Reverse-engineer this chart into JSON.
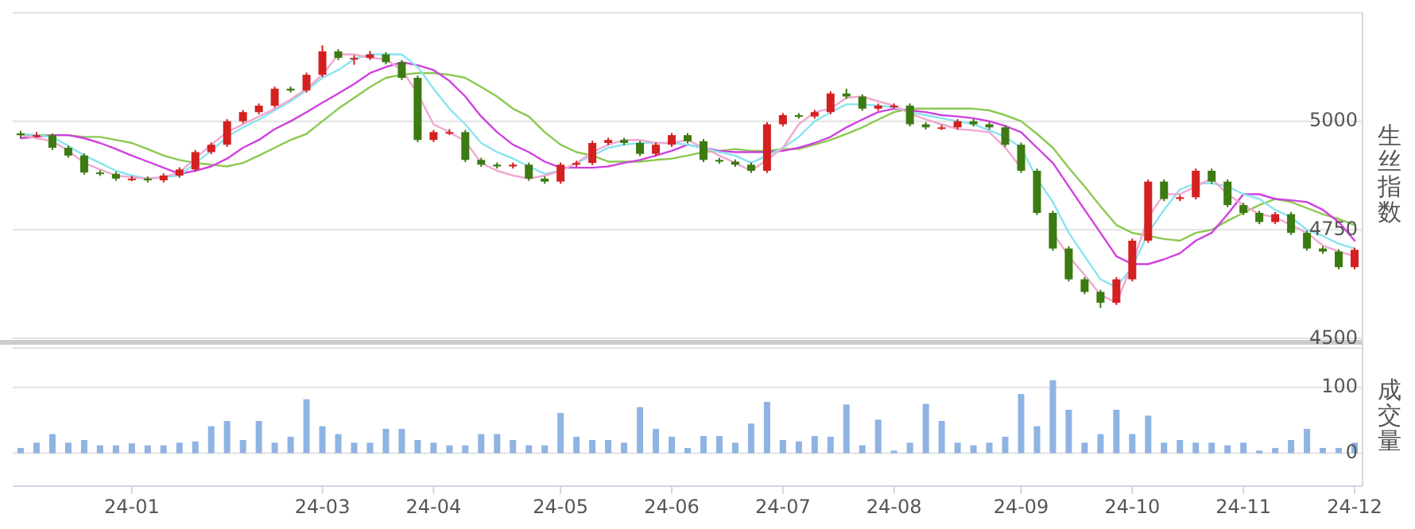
{
  "chart_data": [
    {
      "type": "candlestick",
      "ylabel": "生丝指数",
      "grid": "y",
      "tick_labels": "y",
      "ylim": [
        4500,
        5250
      ],
      "yticks": [
        4500,
        4750,
        5000,
        {
          "value": 5250,
          "label": null
        }
      ],
      "categories": [
        null,
        null,
        null,
        null,
        null,
        null,
        null,
        null,
        null,
        null,
        null,
        null,
        null,
        null,
        null,
        null,
        null,
        null,
        null,
        null,
        null,
        null,
        null,
        null,
        null,
        null,
        null,
        null,
        null,
        null,
        null,
        null,
        null,
        null,
        null,
        null,
        null,
        null,
        null,
        null,
        null,
        null,
        null,
        null,
        null,
        null,
        null,
        null,
        null,
        null,
        null,
        null,
        null,
        null,
        null,
        null,
        null,
        null,
        null,
        null,
        null,
        null,
        null,
        null,
        null,
        null,
        null,
        null,
        null,
        null,
        null,
        null,
        null,
        null,
        null,
        null,
        null,
        null,
        null,
        null,
        null,
        null,
        null,
        null,
        null
      ],
      "ohlc": [
        [
          4972,
          4978,
          4962,
          4968
        ],
        [
          4968,
          4975,
          4962,
          4968
        ],
        [
          4968,
          4972,
          4934,
          4939
        ],
        [
          4939,
          4944,
          4916,
          4921
        ],
        [
          4921,
          4926,
          4877,
          4882
        ],
        [
          4882,
          4887,
          4874,
          4879
        ],
        [
          4879,
          4884,
          4863,
          4868
        ],
        [
          4868,
          4874,
          4862,
          4868
        ],
        [
          4868,
          4873,
          4859,
          4864
        ],
        [
          4864,
          4880,
          4859,
          4875
        ],
        [
          4875,
          4894,
          4870,
          4889
        ],
        [
          4889,
          4934,
          4884,
          4929
        ],
        [
          4929,
          4951,
          4924,
          4946
        ],
        [
          4946,
          5005,
          4941,
          5000
        ],
        [
          5000,
          5026,
          4995,
          5021
        ],
        [
          5021,
          5041,
          5016,
          5036
        ],
        [
          5036,
          5080,
          5031,
          5075
        ],
        [
          5075,
          5080,
          5066,
          5071
        ],
        [
          5071,
          5112,
          5066,
          5107
        ],
        [
          5107,
          5175,
          5102,
          5161
        ],
        [
          5161,
          5166,
          5141,
          5146
        ],
        [
          5146,
          5152,
          5130,
          5146
        ],
        [
          5146,
          5162,
          5141,
          5154
        ],
        [
          5154,
          5159,
          5131,
          5136
        ],
        [
          5136,
          5141,
          5095,
          5100
        ],
        [
          5100,
          5105,
          4952,
          4957
        ],
        [
          4957,
          4980,
          4952,
          4975
        ],
        [
          4975,
          4982,
          4968,
          4975
        ],
        [
          4975,
          4980,
          4906,
          4911
        ],
        [
          4911,
          4916,
          4895,
          4900
        ],
        [
          4900,
          4905,
          4891,
          4896
        ],
        [
          4896,
          4905,
          4891,
          4900
        ],
        [
          4900,
          4905,
          4863,
          4868
        ],
        [
          4868,
          4873,
          4856,
          4861
        ],
        [
          4861,
          4905,
          4856,
          4900
        ],
        [
          4900,
          4909,
          4895,
          4904
        ],
        [
          4904,
          4955,
          4899,
          4950
        ],
        [
          4950,
          4962,
          4945,
          4957
        ],
        [
          4957,
          4962,
          4945,
          4950
        ],
        [
          4950,
          4955,
          4920,
          4925
        ],
        [
          4925,
          4951,
          4920,
          4946
        ],
        [
          4946,
          4973,
          4941,
          4968
        ],
        [
          4968,
          4973,
          4949,
          4954
        ],
        [
          4954,
          4959,
          4906,
          4911
        ],
        [
          4911,
          4916,
          4902,
          4907
        ],
        [
          4907,
          4912,
          4895,
          4900
        ],
        [
          4900,
          4905,
          4881,
          4886
        ],
        [
          4886,
          4998,
          4881,
          4993
        ],
        [
          4993,
          5019,
          4988,
          5014
        ],
        [
          5014,
          5019,
          5006,
          5011
        ],
        [
          5011,
          5026,
          5006,
          5021
        ],
        [
          5021,
          5069,
          5016,
          5064
        ],
        [
          5064,
          5075,
          5052,
          5057
        ],
        [
          5057,
          5062,
          5024,
          5029
        ],
        [
          5029,
          5041,
          5024,
          5036
        ],
        [
          5036,
          5041,
          5030,
          5036
        ],
        [
          5036,
          5041,
          4988,
          4993
        ],
        [
          4993,
          4998,
          4981,
          4986
        ],
        [
          4986,
          4992,
          4980,
          4986
        ],
        [
          4986,
          5005,
          4981,
          5000
        ],
        [
          5000,
          5005,
          4988,
          4993
        ],
        [
          4993,
          4998,
          4981,
          4986
        ],
        [
          4986,
          4991,
          4941,
          4946
        ],
        [
          4946,
          4951,
          4881,
          4886
        ],
        [
          4886,
          4891,
          4784,
          4789
        ],
        [
          4789,
          4794,
          4702,
          4707
        ],
        [
          4707,
          4712,
          4631,
          4636
        ],
        [
          4636,
          4641,
          4602,
          4607
        ],
        [
          4607,
          4612,
          4570,
          4582
        ],
        [
          4582,
          4641,
          4577,
          4636
        ],
        [
          4636,
          4730,
          4631,
          4725
        ],
        [
          4725,
          4866,
          4720,
          4861
        ],
        [
          4861,
          4866,
          4816,
          4821
        ],
        [
          4821,
          4830,
          4816,
          4825
        ],
        [
          4825,
          4891,
          4820,
          4886
        ],
        [
          4886,
          4891,
          4856,
          4861
        ],
        [
          4861,
          4866,
          4802,
          4807
        ],
        [
          4807,
          4812,
          4784,
          4789
        ],
        [
          4789,
          4794,
          4763,
          4768
        ],
        [
          4768,
          4791,
          4763,
          4786
        ],
        [
          4786,
          4791,
          4738,
          4743
        ],
        [
          4743,
          4748,
          4702,
          4707
        ],
        [
          4707,
          4712,
          4695,
          4700
        ],
        [
          4700,
          4705,
          4659,
          4664
        ],
        [
          4664,
          4709,
          4659,
          4704
        ]
      ],
      "series": [
        {
          "type": "line",
          "color": "#8cc850",
          "values": [
            4968,
            4968,
            4968,
            4968,
            4964,
            4964,
            4957,
            4950,
            4936,
            4921,
            4911,
            4904,
            4900,
            4896,
            4904,
            4921,
            4939,
            4957,
            4971,
            5000,
            5029,
            5054,
            5079,
            5100,
            5107,
            5111,
            5111,
            5107,
            5100,
            5079,
            5057,
            5029,
            5011,
            4975,
            4946,
            4929,
            4921,
            4907,
            4907,
            4907,
            4911,
            4914,
            4921,
            4929,
            4932,
            4936,
            4932,
            4932,
            4936,
            4936,
            4946,
            4957,
            4971,
            4986,
            5004,
            5021,
            5029,
            5029,
            5029,
            5029,
            5029,
            5025,
            5014,
            5000,
            4971,
            4939,
            4893,
            4850,
            4804,
            4761,
            4743,
            4736,
            4729,
            4725,
            4743,
            4750,
            4771,
            4789,
            4807,
            4821,
            4814,
            4800,
            4786,
            4775,
            4761
          ]
        },
        {
          "type": "line",
          "color": "#d040e0",
          "values": [
            4961,
            4964,
            4968,
            4968,
            4961,
            4950,
            4936,
            4921,
            4907,
            4893,
            4879,
            4886,
            4896,
            4914,
            4939,
            4957,
            4982,
            5000,
            5021,
            5043,
            5064,
            5086,
            5111,
            5125,
            5136,
            5129,
            5118,
            5093,
            5057,
            5011,
            4975,
            4946,
            4929,
            4907,
            4893,
            4893,
            4893,
            4896,
            4904,
            4911,
            4921,
            4932,
            4946,
            4939,
            4932,
            4929,
            4929,
            4929,
            4932,
            4939,
            4950,
            4964,
            4986,
            5004,
            5021,
            5029,
            5025,
            5021,
            5014,
            5011,
            5007,
            5000,
            4989,
            4975,
            4939,
            4904,
            4850,
            4796,
            4743,
            4689,
            4671,
            4671,
            4682,
            4696,
            4725,
            4743,
            4786,
            4832,
            4832,
            4821,
            4818,
            4814,
            4796,
            4768,
            4725
          ]
        },
        {
          "type": "line",
          "color": "#88e4f0",
          "values": [
            4971,
            4968,
            4964,
            4943,
            4921,
            4904,
            4886,
            4875,
            4868,
            4871,
            4875,
            4904,
            4932,
            4964,
            4986,
            5004,
            5025,
            5046,
            5071,
            5100,
            5118,
            5143,
            5154,
            5154,
            5154,
            5125,
            5075,
            5029,
            4993,
            4950,
            4929,
            4914,
            4896,
            4879,
            4886,
            4904,
            4921,
            4939,
            4946,
            4950,
            4950,
            4950,
            4946,
            4939,
            4929,
            4921,
            4904,
            4921,
            4939,
            4964,
            5000,
            5021,
            5039,
            5039,
            5036,
            5032,
            5021,
            5014,
            5007,
            5000,
            4993,
            4979,
            4964,
            4939,
            4868,
            4814,
            4743,
            4689,
            4636,
            4618,
            4664,
            4743,
            4796,
            4843,
            4857,
            4857,
            4850,
            4832,
            4821,
            4796,
            4779,
            4750,
            4736,
            4718,
            4707
          ]
        },
        {
          "type": "line",
          "color": "#f0a8d0",
          "values": [
            4968,
            4961,
            4954,
            4932,
            4904,
            4889,
            4875,
            4871,
            4868,
            4871,
            4882,
            4914,
            4946,
            4975,
            4993,
            5011,
            5029,
            5050,
            5075,
            5107,
            5154,
            5154,
            5146,
            5143,
            5118,
            5064,
            4993,
            4975,
            4954,
            4904,
            4886,
            4875,
            4868,
            4875,
            4886,
            4904,
            4929,
            4946,
            4957,
            4957,
            4950,
            4950,
            4957,
            4939,
            4921,
            4904,
            4886,
            4911,
            4939,
            4993,
            5021,
            5029,
            5054,
            5057,
            5046,
            5036,
            5018,
            5004,
            4993,
            4982,
            4979,
            4975,
            4939,
            4893,
            null,
            4743,
            4689,
            4646,
            4600,
            4582,
            4671,
            4779,
            4832,
            4832,
            4850,
            4868,
            4832,
            4807,
            4786,
            4779,
            4761,
            4743,
            4714,
            4700,
            4689
          ]
        }
      ]
    },
    {
      "type": "bar",
      "ylabel": "成交量",
      "grid": "y",
      "color": "#8fb4e3",
      "ylim": [
        -50,
        160
      ],
      "yticks": [
        0,
        100
      ],
      "categories": [
        null,
        null,
        null,
        null,
        null,
        null,
        null,
        "24-01",
        null,
        null,
        null,
        null,
        null,
        null,
        null,
        null,
        null,
        null,
        null,
        "24-03",
        null,
        null,
        null,
        null,
        null,
        null,
        "24-04",
        null,
        null,
        null,
        null,
        null,
        null,
        null,
        "24-05",
        null,
        null,
        null,
        null,
        null,
        null,
        "24-06",
        null,
        null,
        null,
        null,
        null,
        null,
        "24-07",
        null,
        null,
        null,
        null,
        null,
        null,
        "24-08",
        null,
        null,
        null,
        null,
        null,
        null,
        null,
        "24-09",
        null,
        null,
        null,
        null,
        null,
        null,
        "24-10",
        null,
        null,
        null,
        null,
        null,
        null,
        "24-11",
        null,
        null,
        null,
        null,
        null,
        null,
        "24-12"
      ],
      "values": [
        8,
        16,
        29,
        16,
        20,
        12,
        12,
        15,
        12,
        12,
        16,
        18,
        41,
        49,
        20,
        49,
        16,
        25,
        82,
        41,
        29,
        16,
        16,
        37,
        37,
        20,
        16,
        12,
        12,
        29,
        29,
        20,
        12,
        12,
        61,
        25,
        20,
        20,
        16,
        70,
        37,
        25,
        8,
        26,
        26,
        16,
        45,
        78,
        20,
        18,
        26,
        25,
        74,
        12,
        51,
        4,
        16,
        75,
        49,
        16,
        12,
        16,
        25,
        90,
        41,
        111,
        66,
        16,
        29,
        66,
        29,
        57,
        16,
        20,
        16,
        16,
        12,
        16,
        4,
        8,
        20,
        37,
        8,
        8,
        16
      ]
    }
  ]
}
